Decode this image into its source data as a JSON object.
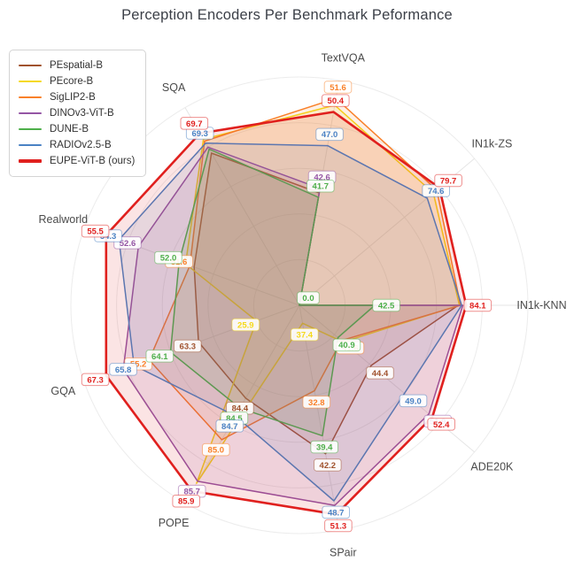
{
  "title": "Perception Encoders Per Benchmark Peformance",
  "legend": {
    "entries": [
      {
        "label": "PEspatial-B",
        "color": "#a0522d"
      },
      {
        "label": "PEcore-B",
        "color": "#f5d91a"
      },
      {
        "label": "SigLIP2-B",
        "color": "#f9812a"
      },
      {
        "label": "DINOv3-ViT-B",
        "color": "#9455a4"
      },
      {
        "label": "DUNE-B",
        "color": "#4daf4a"
      },
      {
        "label": "RADIOv2.5-B",
        "color": "#4a82c4"
      },
      {
        "label": "EUPE-ViT-B (ours)",
        "color": "#e0201e"
      }
    ]
  },
  "chart_data": {
    "type": "radar",
    "title": "Perception Encoders Per Benchmark Peformance",
    "axes": [
      "TextVQA",
      "IN1k-ZS",
      "IN1k-KNN",
      "ADE20K",
      "SPair",
      "POPE",
      "GQA",
      "Realworld",
      "SQA"
    ],
    "axis_start_angle_deg": 80,
    "axis_step_deg": -40,
    "grid": "on",
    "grid_rings": [
      0.2,
      0.4,
      0.6,
      0.8,
      1.0
    ],
    "legend_position": "upper-left",
    "series": [
      {
        "name": "PEspatial-B",
        "color": "#a0522d",
        "width": 1.5,
        "values": [
          41.9,
          0.0,
          83.0,
          44.4,
          42.2,
          84.4,
          63.3,
          52.3,
          68.9
        ],
        "r_frac": [
          0.5,
          0.0,
          0.695,
          0.41,
          0.66,
          0.47,
          0.47,
          0.49,
          0.77
        ],
        "labeled": [
          0,
          0,
          0,
          1,
          1,
          1,
          1,
          0,
          0
        ]
      },
      {
        "name": "PEcore-B",
        "color": "#f5d91a",
        "width": 1.5,
        "values": [
          51.2,
          78.7,
          83.4,
          30.5,
          37.4,
          85.8,
          25.9,
          52.4,
          69.4
        ],
        "r_frac": [
          0.89,
          0.765,
          0.7,
          0.25,
          0.08,
          0.9,
          0.2,
          0.53,
          0.84
        ],
        "labeled": [
          0,
          0,
          0,
          0,
          1,
          0,
          1,
          0,
          0
        ]
      },
      {
        "name": "SigLIP2-B",
        "color": "#f9812a",
        "width": 1.5,
        "values": [
          51.6,
          79.4,
          83.6,
          41.6,
          32.8,
          85.0,
          55.2,
          51.6,
          69.2
        ],
        "r_frac": [
          0.92,
          0.785,
          0.705,
          0.24,
          0.38,
          0.68,
          0.7,
          0.51,
          0.83
        ],
        "labeled": [
          1,
          0,
          0,
          1,
          1,
          1,
          1,
          1,
          0
        ]
      },
      {
        "name": "DINOv3-ViT-B",
        "color": "#9455a4",
        "width": 1.5,
        "values": [
          42.6,
          0.0,
          83.8,
          51.9,
          50.8,
          85.7,
          65.5,
          52.6,
          69.1
        ],
        "r_frac": [
          0.52,
          0.0,
          0.715,
          0.74,
          0.89,
          0.89,
          0.82,
          0.75,
          0.8
        ],
        "labeled": [
          1,
          0,
          0,
          1,
          0,
          1,
          0,
          1,
          0
        ]
      },
      {
        "name": "DUNE-B",
        "color": "#4daf4a",
        "width": 1.5,
        "values": [
          41.7,
          0.0,
          42.5,
          40.9,
          39.4,
          84.5,
          64.1,
          52.0,
          68.8
        ],
        "r_frac": [
          0.48,
          0.0,
          0.33,
          0.22,
          0.58,
          0.52,
          0.6,
          0.56,
          0.79
        ],
        "labeled": [
          1,
          1,
          1,
          1,
          1,
          1,
          1,
          1,
          0
        ]
      },
      {
        "name": "RADIOv2.5-B",
        "color": "#4a82c4",
        "width": 1.5,
        "values": [
          47.0,
          74.6,
          83.5,
          49.0,
          48.7,
          84.7,
          65.8,
          54.3,
          69.3
        ],
        "r_frac": [
          0.71,
          0.73,
          0.71,
          0.6,
          0.87,
          0.56,
          0.77,
          0.84,
          0.82
        ],
        "labeled": [
          1,
          1,
          0,
          1,
          1,
          1,
          1,
          1,
          1
        ]
      },
      {
        "name": "EUPE-ViT-B (ours)",
        "color": "#e0201e",
        "width": 2.6,
        "values": [
          50.4,
          79.7,
          84.1,
          52.4,
          51.3,
          85.9,
          67.3,
          55.5,
          69.7
        ],
        "r_frac": [
          0.86,
          0.8,
          0.73,
          0.76,
          0.93,
          0.94,
          0.9,
          0.9,
          0.87
        ],
        "labeled": [
          1,
          1,
          1,
          1,
          1,
          1,
          1,
          1,
          1
        ]
      }
    ]
  }
}
